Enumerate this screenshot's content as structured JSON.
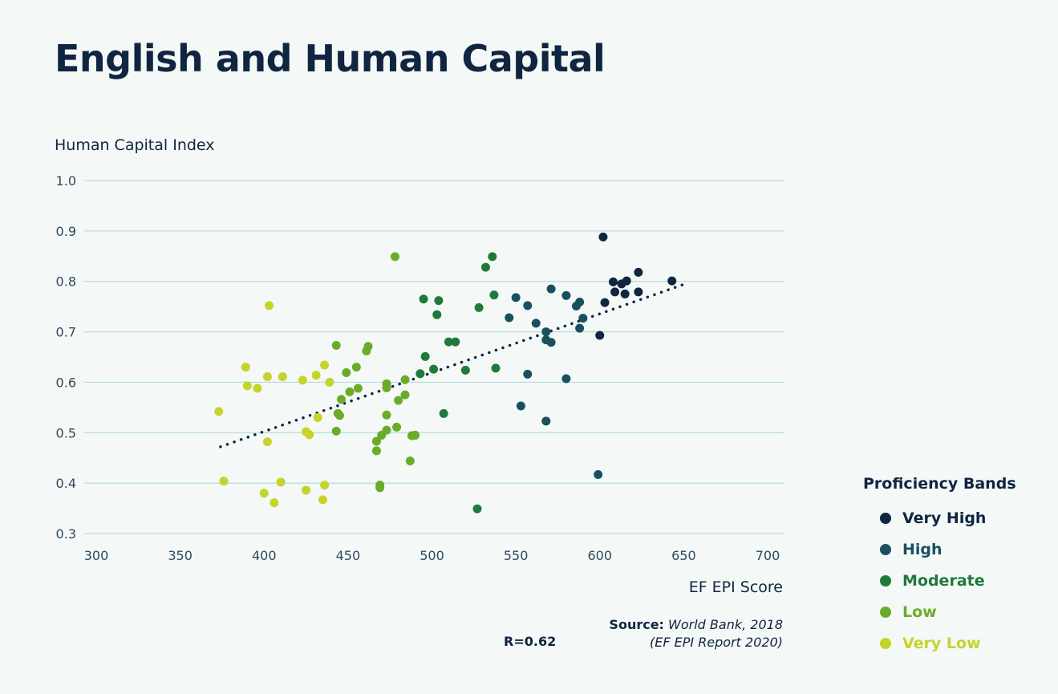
{
  "title": "English and Human Capital",
  "source": {
    "label": "Source:",
    "value": "World Bank, 2018",
    "report": "(EF EPI Report 2020)"
  },
  "r_value": "R=0.62",
  "legend": {
    "title": "Proficiency Bands",
    "items": [
      {
        "label": "Very High",
        "color": "#0f2540"
      },
      {
        "label": "High",
        "color": "#19505e"
      },
      {
        "label": "Moderate",
        "color": "#1f7a3a"
      },
      {
        "label": "Low",
        "color": "#6aac2a"
      },
      {
        "label": "Very Low",
        "color": "#c5d42a"
      }
    ]
  },
  "chart_data": {
    "type": "scatter",
    "xlabel": "EF EPI Score",
    "ylabel": "Human Capital Index",
    "xlim": [
      300,
      700
    ],
    "ylim": [
      0.3,
      1.0
    ],
    "xticks": [
      "300",
      "350",
      "400",
      "450",
      "500",
      "550",
      "600",
      "650",
      "700"
    ],
    "yticks": [
      "0.3",
      "0.4",
      "0.5",
      "0.6",
      "0.7",
      "0.8",
      "0.9",
      "1.0"
    ],
    "grid": "horizontal",
    "trendline": {
      "x": [
        374,
        650
      ],
      "y": [
        0.472,
        0.794
      ],
      "style": "dotted"
    },
    "series": [
      {
        "name": "Very High",
        "color": "#0f2540",
        "points": [
          [
            602,
            0.888
          ],
          [
            608,
            0.799
          ],
          [
            613,
            0.795
          ],
          [
            616,
            0.801
          ],
          [
            623,
            0.818
          ],
          [
            643,
            0.801
          ],
          [
            603,
            0.758
          ],
          [
            609,
            0.779
          ],
          [
            615,
            0.775
          ],
          [
            623,
            0.779
          ],
          [
            600,
            0.693
          ]
        ]
      },
      {
        "name": "High",
        "color": "#19505e",
        "points": [
          [
            571,
            0.785
          ],
          [
            580,
            0.772
          ],
          [
            550,
            0.768
          ],
          [
            557,
            0.752
          ],
          [
            586,
            0.751
          ],
          [
            588,
            0.759
          ],
          [
            546,
            0.728
          ],
          [
            590,
            0.727
          ],
          [
            562,
            0.717
          ],
          [
            588,
            0.707
          ],
          [
            568,
            0.7
          ],
          [
            568,
            0.684
          ],
          [
            571,
            0.679
          ],
          [
            557,
            0.616
          ],
          [
            580,
            0.607
          ],
          [
            553,
            0.553
          ],
          [
            568,
            0.523
          ],
          [
            599,
            0.417
          ]
        ]
      },
      {
        "name": "Moderate",
        "color": "#1f7a3a",
        "points": [
          [
            536,
            0.849
          ],
          [
            532,
            0.828
          ],
          [
            537,
            0.773
          ],
          [
            528,
            0.748
          ],
          [
            495,
            0.765
          ],
          [
            504,
            0.762
          ],
          [
            503,
            0.734
          ],
          [
            510,
            0.68
          ],
          [
            514,
            0.68
          ],
          [
            496,
            0.651
          ],
          [
            501,
            0.626
          ],
          [
            520,
            0.624
          ],
          [
            538,
            0.628
          ],
          [
            493,
            0.617
          ],
          [
            507,
            0.538
          ],
          [
            527,
            0.349
          ]
        ]
      },
      {
        "name": "Low",
        "color": "#6aac2a",
        "points": [
          [
            478,
            0.849
          ],
          [
            443,
            0.673
          ],
          [
            462,
            0.671
          ],
          [
            461,
            0.662
          ],
          [
            455,
            0.63
          ],
          [
            449,
            0.619
          ],
          [
            451,
            0.581
          ],
          [
            456,
            0.588
          ],
          [
            473,
            0.597
          ],
          [
            473,
            0.589
          ],
          [
            484,
            0.605
          ],
          [
            480,
            0.564
          ],
          [
            484,
            0.575
          ],
          [
            446,
            0.566
          ],
          [
            444,
            0.538
          ],
          [
            445,
            0.534
          ],
          [
            473,
            0.535
          ],
          [
            443,
            0.503
          ],
          [
            473,
            0.505
          ],
          [
            479,
            0.511
          ],
          [
            470,
            0.495
          ],
          [
            467,
            0.483
          ],
          [
            467,
            0.464
          ],
          [
            488,
            0.494
          ],
          [
            490,
            0.495
          ],
          [
            487,
            0.444
          ],
          [
            469,
            0.391
          ],
          [
            469,
            0.396
          ]
        ]
      },
      {
        "name": "Very Low",
        "color": "#c5d42a",
        "points": [
          [
            403,
            0.752
          ],
          [
            389,
            0.63
          ],
          [
            390,
            0.593
          ],
          [
            396,
            0.588
          ],
          [
            402,
            0.611
          ],
          [
            411,
            0.611
          ],
          [
            423,
            0.604
          ],
          [
            431,
            0.614
          ],
          [
            436,
            0.634
          ],
          [
            439,
            0.6
          ],
          [
            432,
            0.53
          ],
          [
            373,
            0.542
          ],
          [
            425,
            0.502
          ],
          [
            427,
            0.496
          ],
          [
            402,
            0.482
          ],
          [
            376,
            0.404
          ],
          [
            410,
            0.402
          ],
          [
            436,
            0.396
          ],
          [
            400,
            0.38
          ],
          [
            425,
            0.386
          ],
          [
            406,
            0.361
          ],
          [
            435,
            0.367
          ]
        ]
      }
    ]
  }
}
